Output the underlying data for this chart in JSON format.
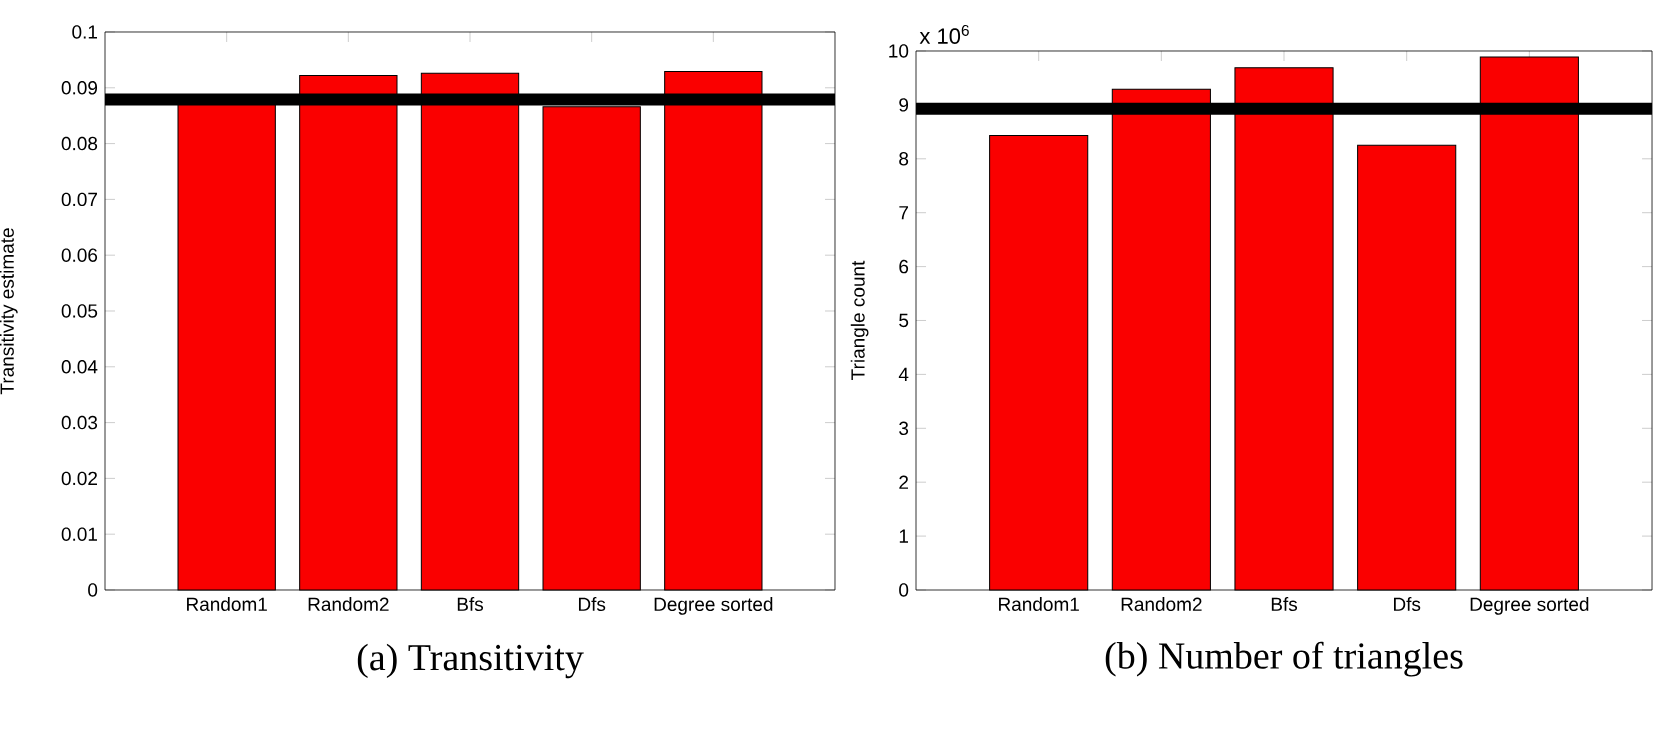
{
  "chart_data": [
    {
      "type": "bar",
      "title": "(a) Transitivity",
      "ylabel": "Transitivity estimate",
      "categories": [
        "Random1",
        "Random2",
        "Bfs",
        "Dfs",
        "Degree sorted"
      ],
      "values": [
        0.0875,
        0.0922,
        0.0926,
        0.0866,
        0.0929
      ],
      "color": "#fa0000",
      "ylim": [
        0,
        0.1
      ],
      "yticks": [
        0,
        0.01,
        0.02,
        0.03,
        0.04,
        0.05,
        0.06,
        0.07,
        0.08,
        0.09,
        0.1
      ],
      "ref_lines": [
        {
          "axis": "y",
          "value": 0.0879,
          "color": "#000000"
        }
      ],
      "grid": false
    },
    {
      "type": "bar",
      "title": "(b) Number of triangles",
      "ylabel": "Triangle count",
      "categories": [
        "Random1",
        "Random2",
        "Bfs",
        "Dfs",
        "Degree sorted"
      ],
      "values": [
        8.43,
        9.29,
        9.69,
        8.25,
        9.89
      ],
      "color": "#fa0000",
      "ylim": [
        0,
        10
      ],
      "yticks": [
        0,
        1,
        2,
        3,
        4,
        5,
        6,
        7,
        8,
        9,
        10
      ],
      "annotations": [
        "x 10$^{6}$"
      ],
      "ref_lines": [
        {
          "axis": "y",
          "value": 8.93,
          "color": "#000000"
        }
      ],
      "grid": false
    }
  ]
}
